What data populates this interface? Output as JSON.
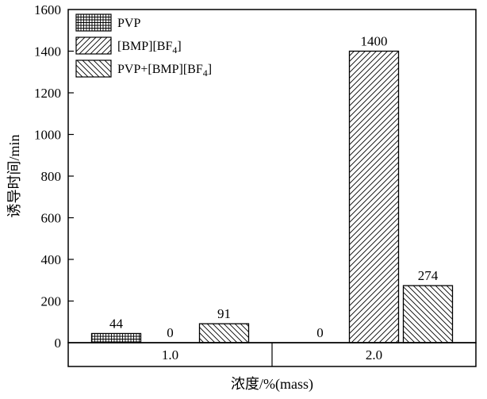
{
  "chart_data": {
    "type": "bar",
    "categories": [
      "1.0",
      "2.0"
    ],
    "series": [
      {
        "name": "PVP",
        "pattern": "grid",
        "values": [
          44,
          0
        ]
      },
      {
        "name": "[BMP][BF₄]",
        "pattern": "diag-forward",
        "values": [
          0,
          1400
        ]
      },
      {
        "name": "PVP+[BMP][BF₄]",
        "pattern": "diag-back",
        "values": [
          91,
          274
        ]
      }
    ],
    "bar_value_labels": [
      [
        "44",
        "0",
        "91"
      ],
      [
        "0",
        "1400",
        "274"
      ]
    ],
    "title": "",
    "xlabel": "浓度/%(mass)",
    "ylabel": "诱导时间/min",
    "ylim": [
      0,
      1600
    ],
    "ytick_step": 200,
    "ytick_labels": [
      "0",
      "200",
      "400",
      "600",
      "800",
      "1000",
      "1200",
      "1400",
      "1600"
    ],
    "legend_position": "top-left",
    "grid": false,
    "axis_color": "#000000",
    "bar_fill_background": "#ffffff"
  }
}
